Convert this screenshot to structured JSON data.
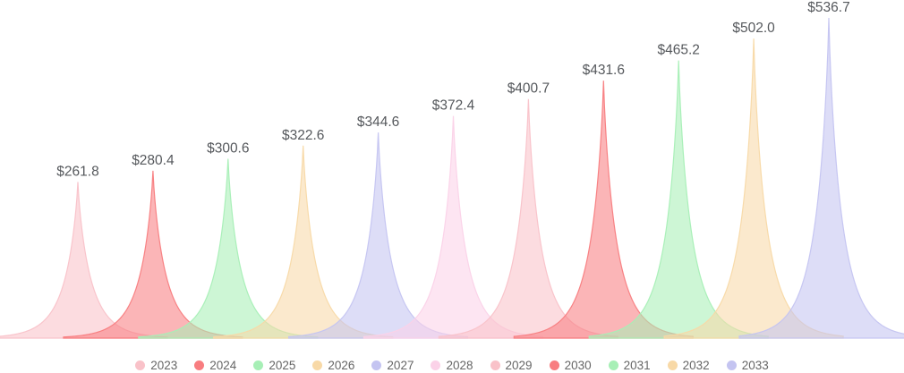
{
  "chart_data": {
    "type": "area",
    "subtype": "spike-peaks",
    "title": "",
    "xlabel": "",
    "ylabel": "",
    "categories": [
      "2023",
      "2024",
      "2025",
      "2026",
      "2027",
      "2028",
      "2029",
      "2030",
      "2031",
      "2032",
      "2033"
    ],
    "values": [
      261.8,
      280.4,
      300.6,
      322.6,
      344.6,
      372.4,
      400.7,
      431.6,
      465.2,
      502.0,
      536.7
    ],
    "labels": [
      "$261.8",
      "$280.4",
      "$300.6",
      "$322.6",
      "$344.6",
      "$372.4",
      "$400.7",
      "$431.6",
      "$465.2",
      "$502.0",
      "$536.7"
    ],
    "value_prefix": "$",
    "colors": [
      "#f9c2c9",
      "#f87d80",
      "#a7efb6",
      "#f8d9a7",
      "#c4c4f1",
      "#fbd2e8",
      "#f9c2c9",
      "#f87d80",
      "#a7efb6",
      "#f8d9a7",
      "#c4c4f1"
    ],
    "ylim": [
      0,
      560
    ],
    "grid": false,
    "axes_visible": false,
    "legend_position": "bottom"
  },
  "style": {
    "background": "#ffffff",
    "value_label_color": "#55585c",
    "legend_text_color": "#666666",
    "fill_opacity": 0.57
  }
}
